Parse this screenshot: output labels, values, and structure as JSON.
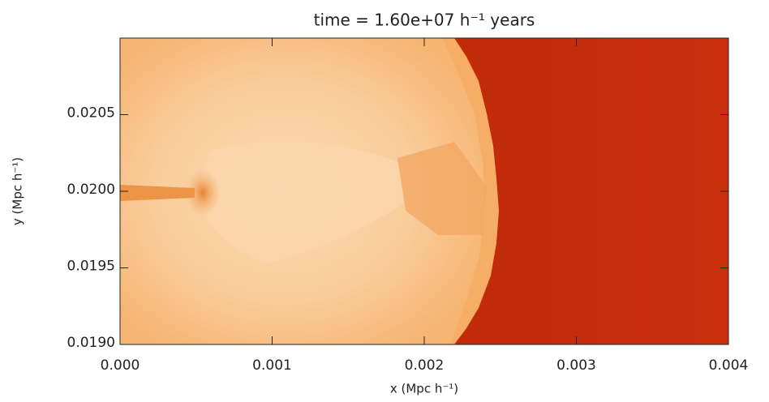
{
  "chart_data": {
    "type": "image",
    "title": "time =  1.60e+07 h⁻¹ years",
    "x_label": "x (Mpc h⁻¹)",
    "y_label": "y (Mpc h⁻¹)",
    "xlim": [
      0,
      0.004
    ],
    "ylim": [
      0.019,
      0.021
    ],
    "xticks": [
      {
        "value": 0,
        "label": "0.000"
      },
      {
        "value": 0.001,
        "label": "0.001"
      },
      {
        "value": 0.002,
        "label": "0.002"
      },
      {
        "value": 0.003,
        "label": "0.003"
      },
      {
        "value": 0.004,
        "label": "0.004"
      }
    ],
    "yticks": [
      {
        "value": 0.019,
        "label": "0.0190"
      },
      {
        "value": 0.0195,
        "label": "0.0195"
      },
      {
        "value": 0.02,
        "label": "0.0200"
      },
      {
        "value": 0.0205,
        "label": "0.0205"
      }
    ]
  }
}
